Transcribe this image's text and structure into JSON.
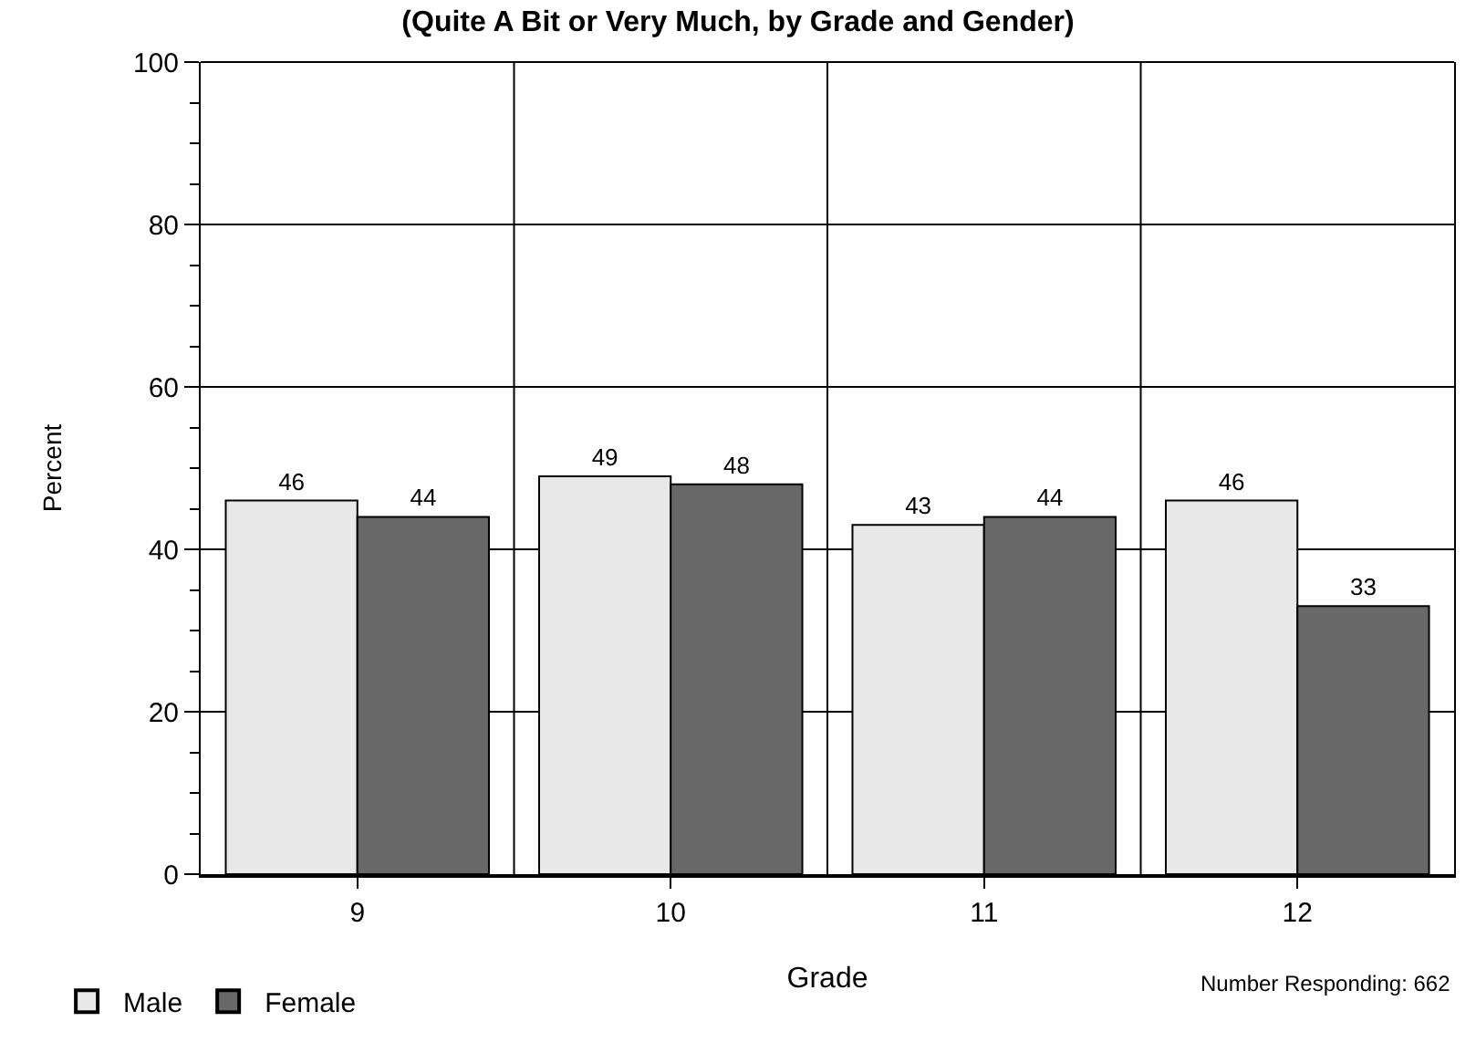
{
  "chart_data": {
    "type": "bar",
    "title": "(Quite A Bit or Very Much, by Grade and Gender)",
    "xlabel": "Grade",
    "ylabel": "Percent",
    "categories": [
      "9",
      "10",
      "11",
      "12"
    ],
    "series": [
      {
        "name": "Male",
        "color": "#e8e8e8",
        "values": [
          46,
          49,
          43,
          46
        ]
      },
      {
        "name": "Female",
        "color": "#686868",
        "values": [
          44,
          48,
          44,
          33
        ]
      }
    ],
    "ylim": [
      0,
      100
    ],
    "yticks": [
      0,
      {
        "value": 5,
        "label": null
      },
      {
        "value": 10,
        "label": null
      },
      {
        "value": 15,
        "label": null
      },
      20,
      {
        "value": 25,
        "label": null
      },
      {
        "value": 30,
        "label": null
      },
      {
        "value": 35,
        "label": null
      },
      40,
      {
        "value": 45,
        "label": null
      },
      {
        "value": 50,
        "label": null
      },
      {
        "value": 55,
        "label": null
      },
      60,
      {
        "value": 65,
        "label": null
      },
      {
        "value": 70,
        "label": null
      },
      {
        "value": 75,
        "label": null
      },
      80,
      {
        "value": 85,
        "label": null
      },
      {
        "value": 90,
        "label": null
      },
      {
        "value": 95,
        "label": null
      },
      100
    ],
    "grid": true,
    "legend": "bottom left",
    "data_labels": true,
    "annotations": [
      "Number Responding: 662"
    ]
  }
}
